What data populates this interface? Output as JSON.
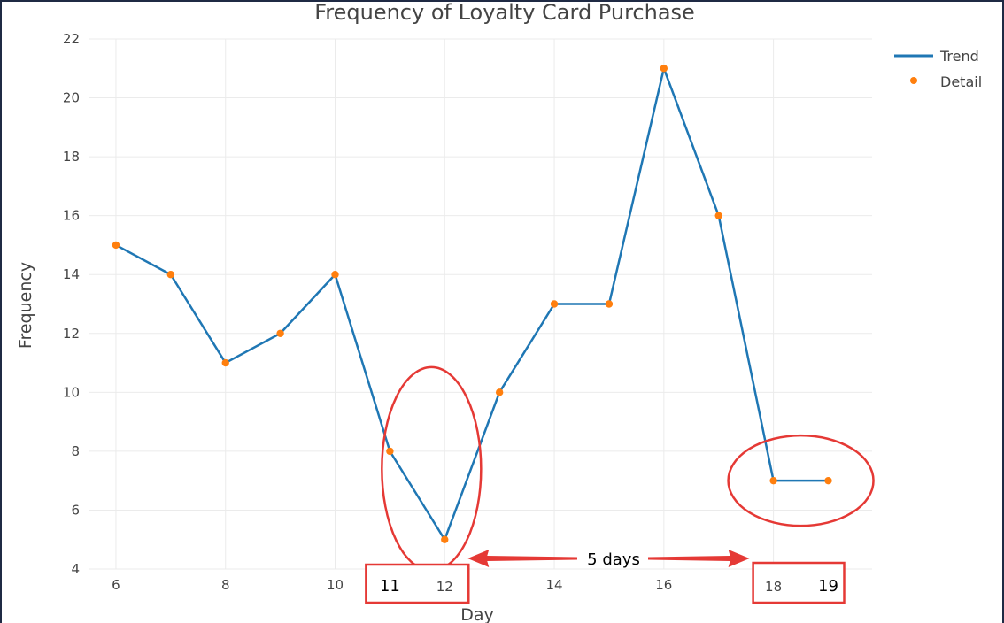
{
  "chart_data": {
    "type": "line",
    "title": "Frequency of Loyalty Card Purchase",
    "xlabel": "Day",
    "ylabel": "Frequency",
    "xlim": [
      5.5,
      19.8
    ],
    "ylim": [
      4,
      22
    ],
    "x_ticks": [
      6,
      8,
      10,
      12,
      14,
      16,
      18
    ],
    "y_ticks": [
      4,
      6,
      8,
      10,
      12,
      14,
      16,
      18,
      20,
      22
    ],
    "grid": true,
    "legend_position": "top-right",
    "series": [
      {
        "name": "Trend",
        "mode": "lines",
        "color": "#1f77b4",
        "x": [
          6,
          7,
          8,
          9,
          10,
          11,
          12,
          13,
          14,
          15,
          16,
          17,
          18,
          19
        ],
        "y": [
          15,
          14,
          11,
          12,
          14,
          8,
          5,
          10,
          13,
          13,
          21,
          16,
          7,
          7
        ]
      },
      {
        "name": "Detail",
        "mode": "markers",
        "color": "#ff7f0e",
        "x": [
          6,
          7,
          8,
          9,
          10,
          11,
          12,
          13,
          14,
          15,
          16,
          17,
          18,
          19
        ],
        "y": [
          15,
          14,
          11,
          12,
          14,
          8,
          5,
          10,
          13,
          13,
          21,
          16,
          7,
          7
        ]
      }
    ],
    "annotations": {
      "color": "#e53935",
      "gap_label": "5 days",
      "box_left_labels": [
        "11",
        "12"
      ],
      "box_right_labels": [
        "18",
        "19"
      ]
    }
  }
}
